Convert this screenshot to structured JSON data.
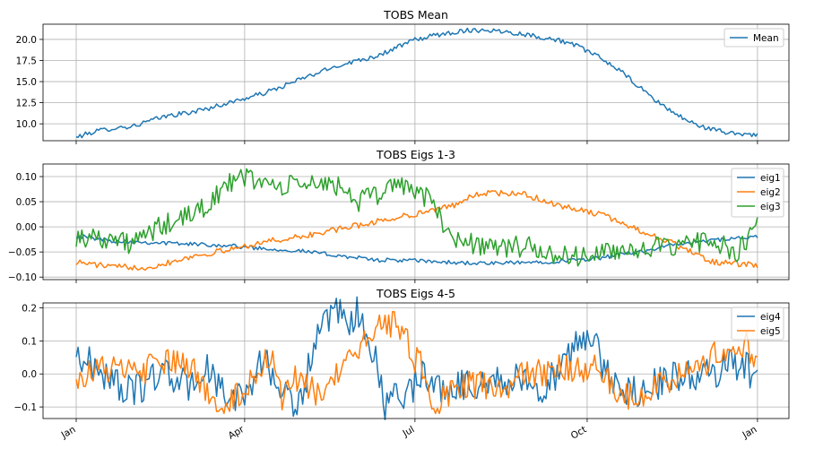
{
  "chart_data": [
    {
      "type": "line",
      "title": "TOBS Mean",
      "x_domain": [
        0,
        365
      ],
      "ylim": [
        8.0,
        21.8
      ],
      "y_ticks": [
        10.0,
        12.5,
        15.0,
        17.5,
        20.0
      ],
      "y_tick_labels": [
        "10.0",
        "12.5",
        "15.0",
        "17.5",
        "20.0"
      ],
      "grid": true,
      "legend_position": "top-right",
      "series": [
        {
          "name": "Mean",
          "color": "#1f77b4",
          "x": [
            0,
            10,
            20,
            30,
            40,
            50,
            60,
            70,
            80,
            90,
            100,
            110,
            120,
            130,
            140,
            150,
            160,
            170,
            180,
            190,
            200,
            210,
            220,
            230,
            240,
            250,
            260,
            270,
            280,
            290,
            300,
            310,
            320,
            330,
            340,
            350,
            358,
            364
          ],
          "values": [
            8.4,
            9.1,
            9.5,
            9.7,
            10.4,
            11.0,
            11.3,
            11.8,
            12.4,
            13.0,
            13.6,
            14.4,
            15.3,
            16.1,
            16.9,
            17.5,
            18.0,
            18.9,
            19.9,
            20.4,
            20.8,
            21.1,
            21.1,
            20.9,
            20.6,
            20.2,
            19.8,
            19.0,
            17.8,
            16.4,
            14.5,
            12.7,
            11.2,
            10.0,
            9.3,
            8.9,
            8.8,
            8.7
          ]
        }
      ]
    },
    {
      "type": "line",
      "title": "TOBS Eigs 1-3",
      "x_domain": [
        0,
        365
      ],
      "ylim": [
        -0.105,
        0.125
      ],
      "y_ticks": [
        -0.1,
        -0.05,
        0.0,
        0.05,
        0.1
      ],
      "y_tick_labels": [
        "−0.10",
        "−0.05",
        "0.00",
        "0.05",
        "0.10"
      ],
      "grid": true,
      "legend_position": "top-right",
      "series": [
        {
          "name": "eig1",
          "color": "#1f77b4",
          "x": [
            0,
            20,
            40,
            60,
            80,
            100,
            120,
            140,
            160,
            180,
            200,
            220,
            240,
            260,
            280,
            300,
            320,
            340,
            364
          ],
          "values": [
            -0.018,
            -0.028,
            -0.031,
            -0.034,
            -0.037,
            -0.043,
            -0.048,
            -0.057,
            -0.066,
            -0.067,
            -0.071,
            -0.073,
            -0.071,
            -0.068,
            -0.062,
            -0.05,
            -0.035,
            -0.027,
            -0.02
          ]
        },
        {
          "name": "eig2",
          "color": "#ff7f0e",
          "x": [
            0,
            20,
            40,
            60,
            80,
            100,
            120,
            140,
            160,
            180,
            200,
            210,
            220,
            240,
            260,
            280,
            300,
            320,
            340,
            364
          ],
          "values": [
            -0.07,
            -0.08,
            -0.08,
            -0.06,
            -0.047,
            -0.03,
            -0.02,
            -0.005,
            0.01,
            0.025,
            0.04,
            0.06,
            0.068,
            0.064,
            0.04,
            0.025,
            -0.005,
            -0.035,
            -0.07,
            -0.077
          ]
        },
        {
          "name": "eig3",
          "color": "#2ca02c",
          "x": [
            0,
            15,
            30,
            45,
            60,
            70,
            80,
            90,
            100,
            110,
            120,
            130,
            140,
            150,
            160,
            170,
            180,
            190,
            200,
            210,
            220,
            240,
            260,
            280,
            300,
            320,
            340,
            352,
            364
          ],
          "values": [
            -0.02,
            -0.02,
            -0.035,
            0.0,
            0.02,
            0.045,
            0.08,
            0.1,
            0.09,
            0.075,
            0.09,
            0.08,
            0.085,
            0.05,
            0.06,
            0.09,
            0.075,
            0.05,
            -0.02,
            -0.03,
            -0.04,
            -0.04,
            -0.06,
            -0.055,
            -0.04,
            -0.045,
            -0.02,
            -0.06,
            0.0
          ]
        }
      ]
    },
    {
      "type": "line",
      "title": "TOBS Eigs 4-5",
      "x_domain": [
        0,
        365
      ],
      "ylim": [
        -0.135,
        0.215
      ],
      "y_ticks": [
        -0.1,
        0.0,
        0.1,
        0.2
      ],
      "y_tick_labels": [
        "−0.1",
        "0.0",
        "0.1",
        "0.2"
      ],
      "grid": true,
      "legend_position": "top-right",
      "series": [
        {
          "name": "eig4",
          "color": "#1f77b4",
          "x": [
            0,
            15,
            30,
            45,
            60,
            70,
            80,
            90,
            100,
            110,
            120,
            125,
            130,
            140,
            145,
            150,
            160,
            165,
            170,
            175,
            180,
            185,
            190,
            200,
            220,
            240,
            250,
            260,
            270,
            275,
            280,
            290,
            300,
            320,
            340,
            350,
            358,
            364
          ],
          "values": [
            0.06,
            0.0,
            -0.06,
            0.01,
            -0.04,
            0.02,
            -0.08,
            -0.06,
            0.05,
            -0.06,
            -0.09,
            0.05,
            0.12,
            0.19,
            0.12,
            0.19,
            0.05,
            -0.12,
            -0.03,
            -0.06,
            -0.04,
            0.02,
            -0.04,
            -0.04,
            -0.02,
            -0.02,
            -0.04,
            0.02,
            0.11,
            0.12,
            0.04,
            -0.05,
            -0.05,
            -0.01,
            0.0,
            0.03,
            0.02,
            -0.02
          ]
        },
        {
          "name": "eig5",
          "color": "#ff7f0e",
          "x": [
            0,
            15,
            30,
            45,
            60,
            70,
            80,
            90,
            100,
            105,
            110,
            115,
            120,
            130,
            140,
            150,
            152,
            158,
            165,
            175,
            180,
            185,
            190,
            200,
            210,
            220,
            230,
            240,
            250,
            260,
            270,
            280,
            290,
            300,
            310,
            320,
            330,
            340,
            350,
            358,
            364
          ],
          "values": [
            -0.01,
            0.02,
            0.0,
            0.03,
            0.03,
            -0.06,
            -0.09,
            -0.05,
            0.04,
            0.07,
            -0.1,
            0.0,
            -0.04,
            -0.06,
            0.0,
            0.05,
            0.1,
            0.14,
            0.14,
            0.15,
            0.05,
            0.02,
            -0.1,
            -0.05,
            -0.03,
            -0.04,
            -0.05,
            0.0,
            0.0,
            0.02,
            0.0,
            0.02,
            -0.06,
            -0.07,
            -0.03,
            -0.01,
            0.0,
            0.05,
            0.08,
            0.09,
            0.04
          ]
        }
      ]
    }
  ],
  "x_axis": {
    "ticks": [
      0,
      90,
      181,
      273,
      364
    ],
    "tick_labels": [
      "Jan",
      "Apr",
      "Jul",
      "Oct",
      "Jan"
    ]
  }
}
